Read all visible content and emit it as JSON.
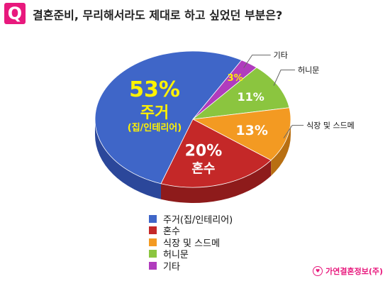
{
  "header": {
    "badge": "Q",
    "title": "결혼준비, 무리해서라도 제대로 하고 싶었던 부분은?"
  },
  "chart_data": {
    "type": "pie",
    "title": "결혼준비, 무리해서라도 제대로 하고 싶었던 부분은?",
    "unit": "%",
    "slices": [
      {
        "name": "주거(집/인테리어)",
        "short": "주거",
        "sub": "(집/인테리어)",
        "value": 53,
        "label": "53%",
        "color": "#3f66c8",
        "side": "#2b479a"
      },
      {
        "name": "혼수",
        "short": "혼수",
        "value": 20,
        "label": "20%",
        "color": "#c42828",
        "side": "#8e1b1b"
      },
      {
        "name": "식장 및 스드메",
        "short": "식장 및 스드메",
        "value": 13,
        "label": "13%",
        "color": "#f39a22",
        "side": "#b86f12"
      },
      {
        "name": "허니문",
        "short": "허니문",
        "value": 11,
        "label": "11%",
        "color": "#8bc53f",
        "side": "#61902a"
      },
      {
        "name": "기타",
        "short": "기타",
        "value": 3,
        "label": "3%",
        "color": "#b03cbd",
        "side": "#7c2286"
      }
    ],
    "legend_position": "bottom"
  },
  "footer": {
    "logo_glyph": "♥",
    "source": "가연결혼정보(주)"
  }
}
